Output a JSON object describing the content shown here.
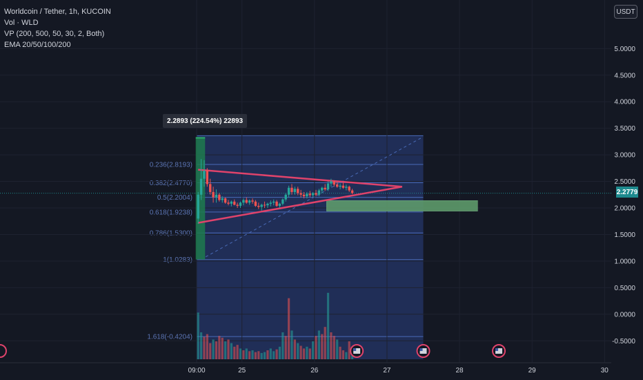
{
  "legend": {
    "symbol": "Worldcoin / Tether, 1h, KUCOIN",
    "vol": "Vol · WLD",
    "vp": "VP (200, 500, 50, 30, 2, Both)",
    "ema": "EMA 20/50/100/200"
  },
  "currency_button": "USDT",
  "last_price": "2.2779",
  "measure_tooltip": "2.2893 (224.54%) 22893",
  "colors": {
    "up": "#26a69a",
    "down": "#ef5350",
    "triangle": "#e0436b",
    "fib_line": "#4a6bb8",
    "fib_fill": "#24366a",
    "zone": "#5e9a6b",
    "background": "#141823"
  },
  "chart_data": {
    "type": "candlestick",
    "y_ticks": [
      "5.0000",
      "4.5000",
      "4.0000",
      "3.5000",
      "3.0000",
      "2.5000",
      "2.0000",
      "1.5000",
      "1.0000",
      "0.5000",
      "0.0000",
      "-0.5000"
    ],
    "y_tick_values": [
      5.0,
      4.5,
      4.0,
      3.5,
      3.0,
      2.5,
      2.0,
      1.5,
      1.0,
      0.5,
      0.0,
      -0.5
    ],
    "x_ticks": [
      "09:00",
      "25",
      "26",
      "27",
      "28",
      "29",
      "30"
    ],
    "x_tick_hours": [
      0,
      15,
      39,
      63,
      87,
      111,
      135
    ],
    "fib_levels": [
      {
        "label": "0.236(2.8193)",
        "value": 2.8193
      },
      {
        "label": "0.382(2.4770)",
        "value": 2.477
      },
      {
        "label": "0.5(2.2004)",
        "value": 2.2004
      },
      {
        "label": "0.618(1.9238)",
        "value": 1.9238
      },
      {
        "label": "0.786(1.5300)",
        "value": 1.53
      },
      {
        "label": "1(1.0283)",
        "value": 1.0283
      },
      {
        "label": "1.618(-0.4204)",
        "value": -0.4204
      }
    ],
    "fib_top": 3.36,
    "fib_range_hours": [
      0,
      75
    ],
    "current_price": 2.2779,
    "triangle": {
      "upper": [
        [
          0.5,
          2.72
        ],
        [
          68,
          2.4
        ]
      ],
      "lower": [
        [
          0.5,
          1.72
        ],
        [
          68,
          2.4
        ]
      ],
      "dashed_trend": [
        [
          3,
          1.08
        ],
        [
          75,
          3.34
        ]
      ]
    },
    "zone": {
      "x": [
        43,
        93
      ],
      "y": [
        1.94,
        2.14
      ]
    },
    "measure_bar": {
      "x": [
        -0.3,
        2.8
      ],
      "y": [
        1.03,
        3.32
      ]
    },
    "candles": [
      {
        "t": 0.5,
        "o": 1.8,
        "h": 2.3,
        "l": 1.7,
        "c": 2.25
      },
      {
        "t": 1.5,
        "o": 2.25,
        "h": 2.92,
        "l": 2.15,
        "c": 2.55
      },
      {
        "t": 2.5,
        "o": 2.55,
        "h": 2.9,
        "l": 2.4,
        "c": 2.7
      },
      {
        "t": 3.5,
        "o": 2.7,
        "h": 2.75,
        "l": 2.4,
        "c": 2.45
      },
      {
        "t": 4.5,
        "o": 2.45,
        "h": 2.55,
        "l": 2.25,
        "c": 2.3
      },
      {
        "t": 5.5,
        "o": 2.3,
        "h": 2.4,
        "l": 2.1,
        "c": 2.2
      },
      {
        "t": 6.5,
        "o": 2.2,
        "h": 2.35,
        "l": 2.1,
        "c": 2.25
      },
      {
        "t": 7.5,
        "o": 2.25,
        "h": 2.28,
        "l": 2.12,
        "c": 2.15
      },
      {
        "t": 8.5,
        "o": 2.15,
        "h": 2.22,
        "l": 2.1,
        "c": 2.18
      },
      {
        "t": 9.5,
        "o": 2.18,
        "h": 2.2,
        "l": 2.08,
        "c": 2.1
      },
      {
        "t": 10.5,
        "o": 2.1,
        "h": 2.15,
        "l": 2.05,
        "c": 2.08
      },
      {
        "t": 11.5,
        "o": 2.08,
        "h": 2.14,
        "l": 2.03,
        "c": 2.12
      },
      {
        "t": 12.5,
        "o": 2.12,
        "h": 2.16,
        "l": 2.05,
        "c": 2.06
      },
      {
        "t": 13.5,
        "o": 2.06,
        "h": 2.1,
        "l": 2.0,
        "c": 2.04
      },
      {
        "t": 14.5,
        "o": 2.04,
        "h": 2.12,
        "l": 2.0,
        "c": 2.1
      },
      {
        "t": 15.5,
        "o": 2.1,
        "h": 2.18,
        "l": 2.05,
        "c": 2.15
      },
      {
        "t": 16.5,
        "o": 2.15,
        "h": 2.2,
        "l": 2.08,
        "c": 2.1
      },
      {
        "t": 17.5,
        "o": 2.1,
        "h": 2.16,
        "l": 2.06,
        "c": 2.14
      },
      {
        "t": 18.5,
        "o": 2.14,
        "h": 2.18,
        "l": 2.08,
        "c": 2.12
      },
      {
        "t": 19.5,
        "o": 2.12,
        "h": 2.15,
        "l": 2.02,
        "c": 2.04
      },
      {
        "t": 20.5,
        "o": 2.04,
        "h": 2.1,
        "l": 1.98,
        "c": 2.02
      },
      {
        "t": 21.5,
        "o": 2.02,
        "h": 2.08,
        "l": 1.95,
        "c": 2.06
      },
      {
        "t": 22.5,
        "o": 2.06,
        "h": 2.12,
        "l": 2.0,
        "c": 2.05
      },
      {
        "t": 23.5,
        "o": 2.05,
        "h": 2.1,
        "l": 2.0,
        "c": 2.08
      },
      {
        "t": 24.5,
        "o": 2.08,
        "h": 2.14,
        "l": 2.03,
        "c": 2.1
      },
      {
        "t": 25.5,
        "o": 2.1,
        "h": 2.16,
        "l": 2.05,
        "c": 2.12
      },
      {
        "t": 26.5,
        "o": 2.12,
        "h": 2.15,
        "l": 2.02,
        "c": 2.04
      },
      {
        "t": 27.5,
        "o": 2.04,
        "h": 2.1,
        "l": 2.0,
        "c": 2.08
      },
      {
        "t": 28.5,
        "o": 2.08,
        "h": 2.18,
        "l": 2.05,
        "c": 2.16
      },
      {
        "t": 29.5,
        "o": 2.16,
        "h": 2.28,
        "l": 2.12,
        "c": 2.25
      },
      {
        "t": 30.5,
        "o": 2.25,
        "h": 2.42,
        "l": 2.2,
        "c": 2.38
      },
      {
        "t": 31.5,
        "o": 2.38,
        "h": 2.45,
        "l": 2.25,
        "c": 2.3
      },
      {
        "t": 32.5,
        "o": 2.3,
        "h": 2.4,
        "l": 2.25,
        "c": 2.36
      },
      {
        "t": 33.5,
        "o": 2.36,
        "h": 2.4,
        "l": 2.24,
        "c": 2.28
      },
      {
        "t": 34.5,
        "o": 2.28,
        "h": 2.34,
        "l": 2.2,
        "c": 2.25
      },
      {
        "t": 35.5,
        "o": 2.25,
        "h": 2.3,
        "l": 2.18,
        "c": 2.22
      },
      {
        "t": 36.5,
        "o": 2.22,
        "h": 2.3,
        "l": 2.18,
        "c": 2.27
      },
      {
        "t": 37.5,
        "o": 2.27,
        "h": 2.32,
        "l": 2.2,
        "c": 2.24
      },
      {
        "t": 38.5,
        "o": 2.24,
        "h": 2.3,
        "l": 2.2,
        "c": 2.28
      },
      {
        "t": 39.5,
        "o": 2.28,
        "h": 2.34,
        "l": 2.22,
        "c": 2.25
      },
      {
        "t": 40.5,
        "o": 2.25,
        "h": 2.36,
        "l": 2.22,
        "c": 2.33
      },
      {
        "t": 41.5,
        "o": 2.33,
        "h": 2.4,
        "l": 2.28,
        "c": 2.38
      },
      {
        "t": 42.5,
        "o": 2.38,
        "h": 2.45,
        "l": 2.32,
        "c": 2.35
      },
      {
        "t": 43.5,
        "o": 2.35,
        "h": 2.5,
        "l": 2.32,
        "c": 2.46
      },
      {
        "t": 44.5,
        "o": 2.46,
        "h": 2.55,
        "l": 2.4,
        "c": 2.5
      },
      {
        "t": 45.5,
        "o": 2.5,
        "h": 2.52,
        "l": 2.4,
        "c": 2.44
      },
      {
        "t": 46.5,
        "o": 2.44,
        "h": 2.5,
        "l": 2.38,
        "c": 2.4
      },
      {
        "t": 47.5,
        "o": 2.4,
        "h": 2.46,
        "l": 2.35,
        "c": 2.42
      },
      {
        "t": 48.5,
        "o": 2.42,
        "h": 2.48,
        "l": 2.36,
        "c": 2.38
      },
      {
        "t": 49.5,
        "o": 2.38,
        "h": 2.44,
        "l": 2.33,
        "c": 2.4
      },
      {
        "t": 50.5,
        "o": 2.4,
        "h": 2.42,
        "l": 2.3,
        "c": 2.33
      },
      {
        "t": 51.5,
        "o": 2.33,
        "h": 2.36,
        "l": 2.26,
        "c": 2.28
      }
    ],
    "volume": {
      "scale_top": 100,
      "bars": [
        {
          "t": 0.5,
          "v": 52,
          "up": true
        },
        {
          "t": 1.5,
          "v": 30,
          "up": true
        },
        {
          "t": 2.5,
          "v": 25,
          "up": false
        },
        {
          "t": 3.5,
          "v": 28,
          "up": false
        },
        {
          "t": 4.5,
          "v": 18,
          "up": false
        },
        {
          "t": 5.5,
          "v": 22,
          "up": true
        },
        {
          "t": 6.5,
          "v": 20,
          "up": false
        },
        {
          "t": 7.5,
          "v": 26,
          "up": false
        },
        {
          "t": 8.5,
          "v": 24,
          "up": false
        },
        {
          "t": 9.5,
          "v": 20,
          "up": true
        },
        {
          "t": 10.5,
          "v": 22,
          "up": false
        },
        {
          "t": 11.5,
          "v": 18,
          "up": true
        },
        {
          "t": 12.5,
          "v": 14,
          "up": false
        },
        {
          "t": 13.5,
          "v": 16,
          "up": false
        },
        {
          "t": 14.5,
          "v": 12,
          "up": true
        },
        {
          "t": 15.5,
          "v": 10,
          "up": false
        },
        {
          "t": 16.5,
          "v": 12,
          "up": true
        },
        {
          "t": 17.5,
          "v": 9,
          "up": false
        },
        {
          "t": 18.5,
          "v": 10,
          "up": true
        },
        {
          "t": 19.5,
          "v": 8,
          "up": false
        },
        {
          "t": 20.5,
          "v": 9,
          "up": false
        },
        {
          "t": 21.5,
          "v": 7,
          "up": true
        },
        {
          "t": 22.5,
          "v": 8,
          "up": true
        },
        {
          "t": 23.5,
          "v": 10,
          "up": false
        },
        {
          "t": 24.5,
          "v": 12,
          "up": true
        },
        {
          "t": 25.5,
          "v": 9,
          "up": true
        },
        {
          "t": 26.5,
          "v": 11,
          "up": false
        },
        {
          "t": 27.5,
          "v": 14,
          "up": true
        },
        {
          "t": 28.5,
          "v": 30,
          "up": true
        },
        {
          "t": 29.5,
          "v": 26,
          "up": false
        },
        {
          "t": 30.5,
          "v": 68,
          "up": false
        },
        {
          "t": 31.5,
          "v": 32,
          "up": true
        },
        {
          "t": 32.5,
          "v": 22,
          "up": false
        },
        {
          "t": 33.5,
          "v": 18,
          "up": true
        },
        {
          "t": 34.5,
          "v": 15,
          "up": false
        },
        {
          "t": 35.5,
          "v": 12,
          "up": false
        },
        {
          "t": 36.5,
          "v": 14,
          "up": true
        },
        {
          "t": 37.5,
          "v": 12,
          "up": false
        },
        {
          "t": 38.5,
          "v": 20,
          "up": true
        },
        {
          "t": 39.5,
          "v": 26,
          "up": false
        },
        {
          "t": 40.5,
          "v": 32,
          "up": true
        },
        {
          "t": 41.5,
          "v": 28,
          "up": false
        },
        {
          "t": 42.5,
          "v": 36,
          "up": false
        },
        {
          "t": 43.5,
          "v": 74,
          "up": true
        },
        {
          "t": 44.5,
          "v": 30,
          "up": false
        },
        {
          "t": 45.5,
          "v": 26,
          "up": false
        },
        {
          "t": 46.5,
          "v": 22,
          "up": true
        },
        {
          "t": 47.5,
          "v": 14,
          "up": false
        },
        {
          "t": 48.5,
          "v": 10,
          "up": false
        },
        {
          "t": 49.5,
          "v": 8,
          "up": true
        },
        {
          "t": 50.5,
          "v": 20,
          "up": false
        },
        {
          "t": 51.5,
          "v": 6,
          "up": true
        }
      ]
    },
    "event_markers_hours": [
      53,
      75,
      100
    ]
  }
}
